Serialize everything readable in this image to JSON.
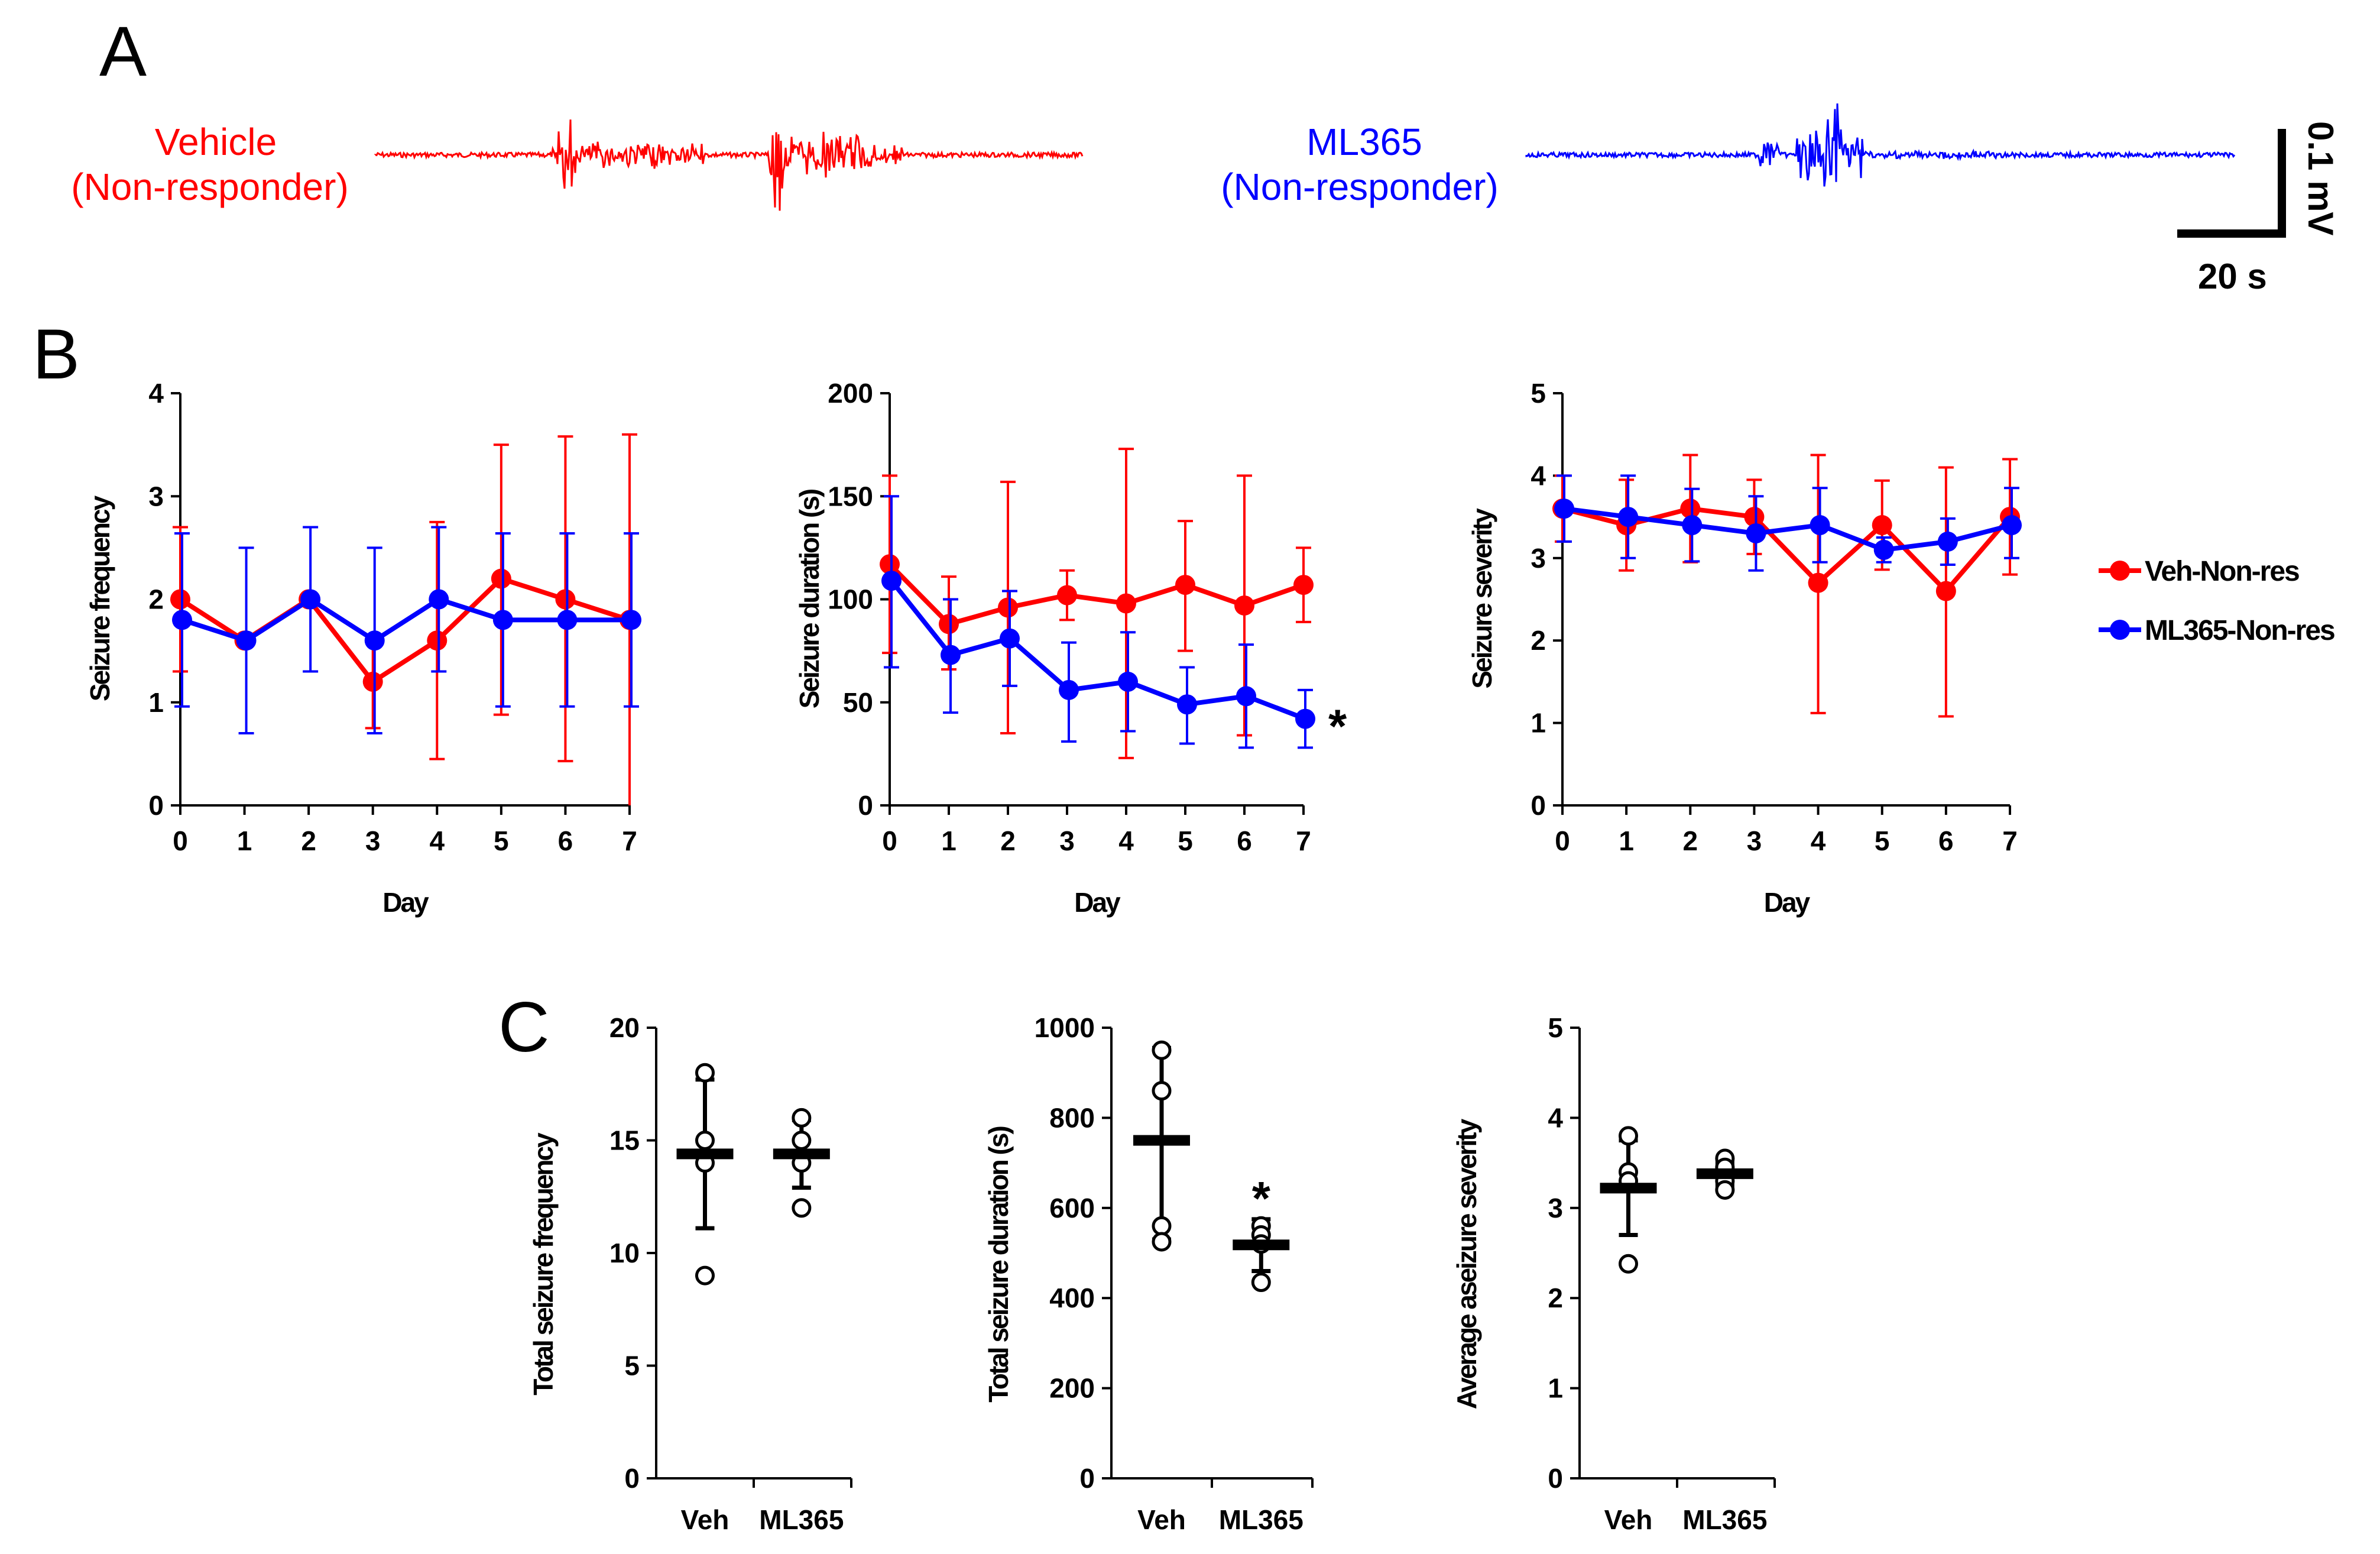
{
  "panel_labels": {
    "a": "A",
    "b": "B",
    "c": "C"
  },
  "colors": {
    "vehicle": "#ff0000",
    "ml365": "#0000ff",
    "axis": "#000000"
  },
  "traces": {
    "vehicle_label_1": "Vehicle",
    "vehicle_label_2": "(Non-responder)",
    "ml365_label_1": "ML365",
    "ml365_label_2": "(Non-responder)"
  },
  "scale_bar": {
    "vertical_label": "0.1 mV",
    "horizontal_label": "20 s"
  },
  "legend": {
    "vehicle": "Veh-Non-res",
    "ml365": "ML365-Non-res"
  },
  "significance_marker": "*",
  "chart_data": [
    {
      "id": "b1",
      "type": "line",
      "title": "",
      "xlabel": "Day",
      "ylabel": "Seizure frequency",
      "x": [
        0,
        1,
        2,
        3,
        4,
        5,
        6,
        7
      ],
      "xlim": [
        0,
        7
      ],
      "ylim": [
        0,
        4
      ],
      "yticks": [
        0,
        1,
        2,
        3,
        4
      ],
      "series": [
        {
          "name": "Veh-Non-res",
          "color": "#ff0000",
          "values": [
            2.0,
            1.6,
            2.0,
            1.2,
            1.6,
            2.2,
            2.0,
            1.8
          ],
          "err_low": [
            1.3,
            1.6,
            2.0,
            0.75,
            0.45,
            0.88,
            0.43,
            0.0
          ],
          "err_high": [
            2.7,
            1.6,
            2.0,
            1.65,
            2.75,
            3.5,
            3.58,
            3.6
          ]
        },
        {
          "name": "ML365-Non-res",
          "color": "#0000ff",
          "values": [
            1.8,
            1.6,
            2.0,
            1.6,
            2.0,
            1.8,
            1.8,
            1.8
          ],
          "err_low": [
            0.96,
            0.7,
            1.3,
            0.7,
            1.3,
            0.96,
            0.96,
            0.96
          ],
          "err_high": [
            2.64,
            2.5,
            2.7,
            2.5,
            2.7,
            2.64,
            2.64,
            2.64
          ]
        }
      ]
    },
    {
      "id": "b2",
      "type": "line",
      "title": "",
      "xlabel": "Day",
      "ylabel": "Seizure duration (s)",
      "x": [
        0,
        1,
        2,
        3,
        4,
        5,
        6,
        7
      ],
      "xlim": [
        0,
        7
      ],
      "ylim": [
        0,
        200
      ],
      "yticks": [
        0,
        50,
        100,
        150,
        200
      ],
      "annotation": "*",
      "series": [
        {
          "name": "Veh-Non-res",
          "color": "#ff0000",
          "values": [
            117,
            88,
            96,
            102,
            98,
            107,
            97,
            107
          ],
          "err_low": [
            74,
            66,
            35,
            90,
            23,
            75,
            34,
            89
          ],
          "err_high": [
            160,
            111,
            157,
            114,
            173,
            138,
            160,
            125
          ]
        },
        {
          "name": "ML365-Non-res",
          "color": "#0000ff",
          "values": [
            109,
            73,
            81,
            56,
            60,
            49,
            53,
            42
          ],
          "err_low": [
            67,
            45,
            58,
            31,
            36,
            30,
            28,
            28
          ],
          "err_high": [
            150,
            100,
            104,
            79,
            84,
            67,
            78,
            56
          ]
        }
      ]
    },
    {
      "id": "b3",
      "type": "line",
      "title": "",
      "xlabel": "Day",
      "ylabel": "Seizure severity",
      "x": [
        0,
        1,
        2,
        3,
        4,
        5,
        6,
        7
      ],
      "xlim": [
        0,
        7
      ],
      "ylim": [
        0,
        5
      ],
      "yticks": [
        0,
        1,
        2,
        3,
        4,
        5
      ],
      "series": [
        {
          "name": "Veh-Non-res",
          "color": "#ff0000",
          "values": [
            3.6,
            3.4,
            3.6,
            3.5,
            2.7,
            3.4,
            2.6,
            3.5
          ],
          "err_low": [
            3.2,
            2.85,
            2.95,
            3.05,
            1.12,
            2.86,
            1.08,
            2.8
          ],
          "err_high": [
            4.0,
            3.95,
            4.25,
            3.95,
            4.25,
            3.94,
            4.1,
            4.2
          ]
        },
        {
          "name": "ML365-Non-res",
          "color": "#0000ff",
          "values": [
            3.6,
            3.5,
            3.4,
            3.3,
            3.4,
            3.1,
            3.2,
            3.4
          ],
          "err_low": [
            3.2,
            3.0,
            2.96,
            2.85,
            2.95,
            2.95,
            2.92,
            3.0
          ],
          "err_high": [
            4.0,
            4.0,
            3.84,
            3.75,
            3.85,
            3.25,
            3.48,
            3.85
          ]
        }
      ]
    },
    {
      "id": "c1",
      "type": "scatter",
      "title": "",
      "xlabel": "",
      "ylabel": "Total seizure frequency",
      "categories": [
        "Veh",
        "ML365"
      ],
      "ylim": [
        0,
        20
      ],
      "yticks": [
        0,
        5,
        10,
        15,
        20
      ],
      "groups": [
        {
          "name": "Veh",
          "points": [
            18,
            15,
            14,
            9
          ],
          "mean": 14.4,
          "sd_low": 11.1,
          "sd_high": 17.7
        },
        {
          "name": "ML365",
          "points": [
            16,
            15,
            14,
            12
          ],
          "mean": 14.4,
          "sd_low": 12.9,
          "sd_high": 15.9
        }
      ]
    },
    {
      "id": "c2",
      "type": "scatter",
      "title": "",
      "xlabel": "",
      "ylabel": "Total seizure duration (s)",
      "categories": [
        "Veh",
        "ML365"
      ],
      "ylim": [
        0,
        1000
      ],
      "yticks": [
        0,
        200,
        400,
        600,
        800,
        1000
      ],
      "annotation": "*",
      "groups": [
        {
          "name": "Veh",
          "points": [
            950,
            860,
            560,
            525
          ],
          "mean": 750,
          "sd_low": 530,
          "sd_high": 955
        },
        {
          "name": "ML365",
          "points": [
            560,
            540,
            520,
            435
          ],
          "mean": 518,
          "sd_low": 460,
          "sd_high": 575
        }
      ]
    },
    {
      "id": "c3",
      "type": "scatter",
      "title": "",
      "xlabel": "",
      "ylabel": "Average aseizure severity",
      "categories": [
        "Veh",
        "ML365"
      ],
      "ylim": [
        0,
        5
      ],
      "yticks": [
        0,
        1,
        2,
        3,
        4,
        5
      ],
      "groups": [
        {
          "name": "Veh",
          "points": [
            3.8,
            3.4,
            3.3,
            2.38
          ],
          "mean": 3.22,
          "sd_low": 2.7,
          "sd_high": 3.75
        },
        {
          "name": "ML365",
          "points": [
            3.55,
            3.45,
            3.3,
            3.2
          ],
          "mean": 3.38,
          "sd_low": 3.25,
          "sd_high": 3.5
        }
      ]
    }
  ]
}
